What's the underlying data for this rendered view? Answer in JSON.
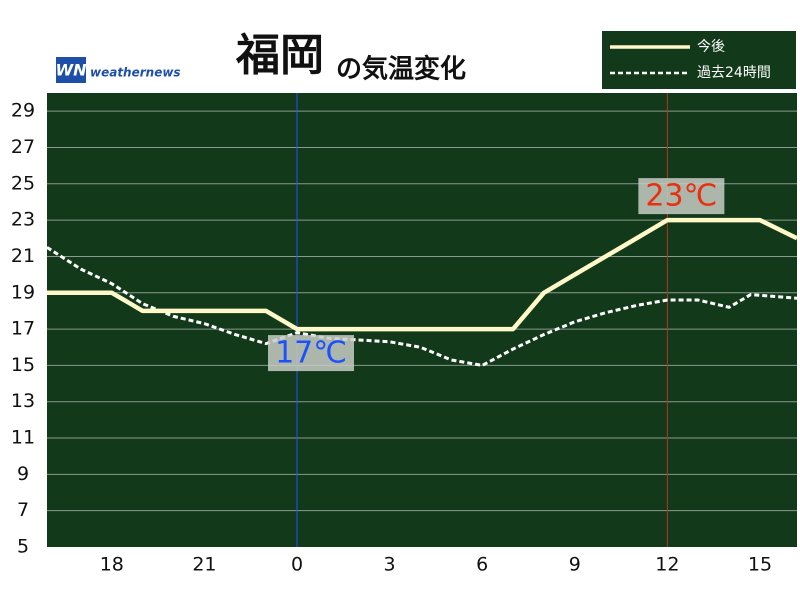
{
  "chart_data": {
    "type": "line",
    "title": "福岡",
    "subtitle": "の気温変化",
    "logo": "WN",
    "brand": "weathernews",
    "xlim": [
      -8.1,
      16.2
    ],
    "ylim": [
      5,
      30
    ],
    "xticks": [
      {
        "value": -6,
        "label": "18"
      },
      {
        "value": -3,
        "label": "21"
      },
      0,
      3,
      6,
      9,
      12,
      15
    ],
    "yticks": [
      5,
      7,
      9,
      11,
      13,
      15,
      17,
      19,
      21,
      23,
      25,
      27,
      29
    ],
    "grid": true,
    "legend": "top-right",
    "series": [
      {
        "name": "今後",
        "color": "#fff8c8",
        "style": "solid",
        "x": [
          -8.1,
          -6,
          -5,
          -4,
          -3,
          -2,
          -1,
          0,
          1,
          2,
          3,
          4,
          5,
          6,
          7,
          8,
          9,
          10,
          11,
          12,
          13,
          14,
          15,
          16.2
        ],
        "values": [
          19,
          19,
          18,
          18,
          18,
          18,
          18,
          17,
          17,
          17,
          17,
          17,
          17,
          17,
          17,
          19,
          20,
          21,
          22,
          23,
          23,
          23,
          23,
          22
        ]
      },
      {
        "name": "過去24時間",
        "color": "#ffffff",
        "style": "dashed",
        "x": [
          -8.1,
          -7,
          -6,
          -5,
          -4,
          -3,
          -2,
          -1,
          0,
          1,
          2,
          3,
          4,
          5,
          6,
          7,
          8,
          9,
          10,
          11,
          12,
          13,
          14,
          14.7,
          16.2
        ],
        "values": [
          21.5,
          20.3,
          19.5,
          18.4,
          17.7,
          17.3,
          16.7,
          16.2,
          16.8,
          16.5,
          16.4,
          16.3,
          16.0,
          15.3,
          15.0,
          15.9,
          16.7,
          17.4,
          17.9,
          18.3,
          18.6,
          18.6,
          18.2,
          18.9,
          18.7
        ]
      }
    ],
    "annotations": [
      {
        "x": 0,
        "y": 17,
        "label": "17℃",
        "color": "#1a50ff",
        "line_color": "#2255ff"
      },
      {
        "x": 12,
        "y": 23,
        "label": "23℃",
        "color": "#e83010",
        "line_color": "#c0301a"
      }
    ]
  }
}
